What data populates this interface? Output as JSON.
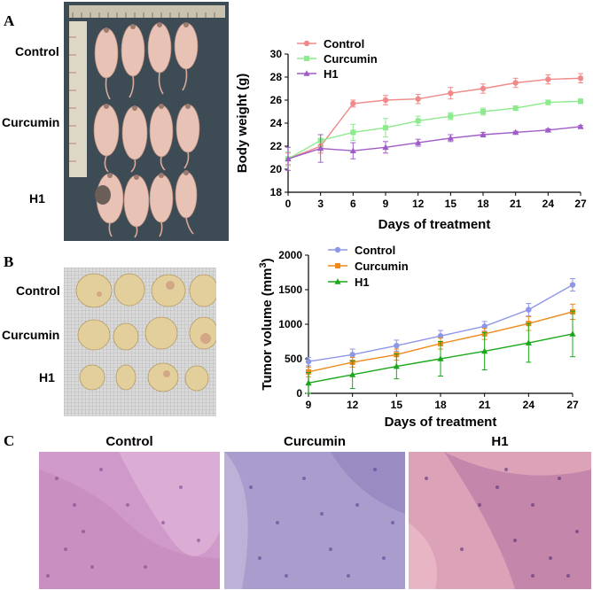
{
  "panels": {
    "a": "A",
    "b": "B",
    "c": "C"
  },
  "mice_photo": {
    "rows": [
      "Control",
      "Curcumin",
      "H1"
    ]
  },
  "tumor_photo": {
    "rows": [
      "Control",
      "Curcumin",
      "H1"
    ]
  },
  "histology": {
    "labels": [
      "Control",
      "Curcumin",
      "H1"
    ]
  },
  "colors": {
    "control_weight": "#f08a8a",
    "curcumin_weight": "#8eea8e",
    "h1_weight": "#a05cc8",
    "control_volume": "#8e96e8",
    "curcumin_volume": "#ef8a1a",
    "h1_volume": "#1aa81a"
  },
  "chart_data": [
    {
      "type": "line",
      "title": "",
      "xlabel": "Days of treatment",
      "ylabel": "Body weight (g)",
      "x": [
        0,
        3,
        6,
        9,
        12,
        15,
        18,
        21,
        24,
        27
      ],
      "xticks": [
        "0",
        "3",
        "6",
        "9",
        "12",
        "15",
        "18",
        "21",
        "24",
        "27"
      ],
      "yticks": [
        "18",
        "20",
        "22",
        "24",
        "26",
        "28",
        "30"
      ],
      "ylim": [
        18,
        30
      ],
      "legend_position": "top-left",
      "series": [
        {
          "name": "Control",
          "values": [
            20.9,
            22.0,
            25.7,
            26.0,
            26.1,
            26.6,
            27.0,
            27.5,
            27.8,
            27.9
          ],
          "errors": [
            0.5,
            0.6,
            0.3,
            0.4,
            0.4,
            0.5,
            0.4,
            0.4,
            0.4,
            0.4
          ]
        },
        {
          "name": "Curcumin",
          "values": [
            20.9,
            22.5,
            23.2,
            23.6,
            24.2,
            24.6,
            25.0,
            25.3,
            25.8,
            25.9
          ],
          "errors": [
            0.6,
            0.5,
            0.7,
            0.8,
            0.4,
            0.3,
            0.3,
            0.2,
            0.2,
            0.2
          ]
        },
        {
          "name": "H1",
          "values": [
            20.9,
            21.8,
            21.6,
            21.9,
            22.3,
            22.7,
            23.0,
            23.2,
            23.4,
            23.7
          ],
          "errors": [
            1.0,
            1.2,
            0.7,
            0.5,
            0.3,
            0.3,
            0.2,
            0.1,
            0.1,
            0.1
          ]
        }
      ]
    },
    {
      "type": "line",
      "title": "",
      "xlabel": "Days of treatment",
      "ylabel": "Tumor volume (mm",
      "ylabel_sup": "3",
      "ylabel_end": ")",
      "x": [
        9,
        12,
        15,
        18,
        21,
        24,
        27
      ],
      "xticks": [
        "9",
        "12",
        "15",
        "18",
        "21",
        "24",
        "27"
      ],
      "yticks": [
        "0",
        "500",
        "1000",
        "1500",
        "2000"
      ],
      "ylim": [
        0,
        2000
      ],
      "legend_position": "top-left",
      "series": [
        {
          "name": "Control",
          "values": [
            460,
            560,
            690,
            830,
            970,
            1210,
            1570
          ],
          "errors": [
            60,
            80,
            80,
            80,
            70,
            90,
            90
          ]
        },
        {
          "name": "Curcumin",
          "values": [
            310,
            450,
            560,
            720,
            860,
            1010,
            1180
          ],
          "errors": [
            70,
            70,
            80,
            80,
            80,
            100,
            110
          ]
        },
        {
          "name": "H1",
          "values": [
            150,
            270,
            390,
            500,
            610,
            730,
            860
          ],
          "errors": [
            150,
            200,
            180,
            250,
            270,
            280,
            330
          ]
        }
      ]
    }
  ]
}
